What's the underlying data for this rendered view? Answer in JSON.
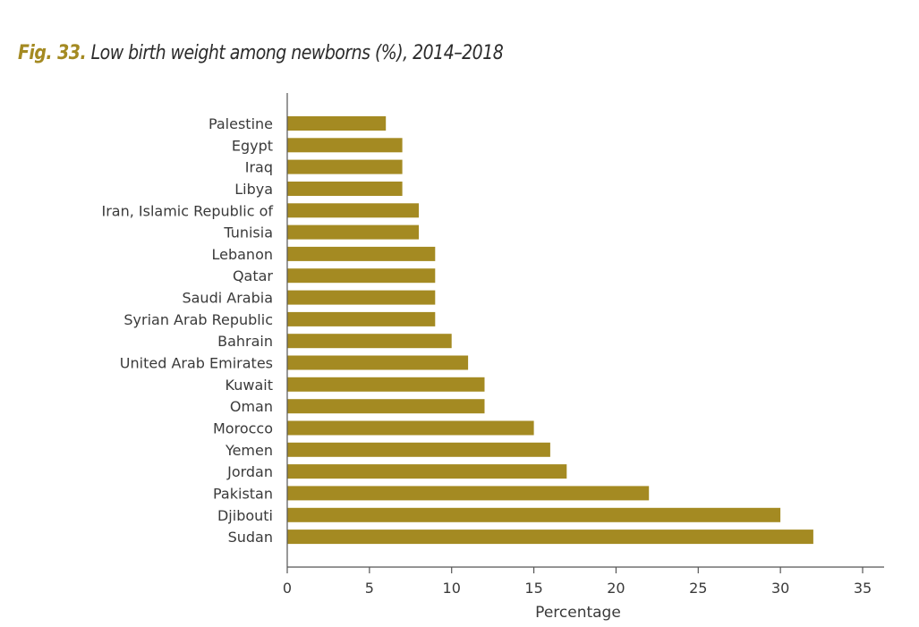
{
  "title": {
    "fig_label": "Fig. 33.",
    "text": "Low birth weight among newborns (%), 2014–2018"
  },
  "colors": {
    "bar": "#a48a22",
    "fig_label": "#a48a22",
    "axis": "#555555"
  },
  "chart_data": {
    "type": "bar",
    "orientation": "horizontal",
    "title": "Fig. 33. Low birth weight among newborns (%), 2014–2018",
    "xlabel": "Percentage",
    "ylabel": "",
    "xlim": [
      0,
      35
    ],
    "xticks": [
      0,
      5,
      10,
      15,
      20,
      25,
      30,
      35
    ],
    "grid": false,
    "categories": [
      "Palestine",
      "Egypt",
      "Iraq",
      "Libya",
      "Iran, Islamic Republic of",
      "Tunisia",
      "Lebanon",
      "Qatar",
      "Saudi Arabia",
      "Syrian Arab Republic",
      "Bahrain",
      "United Arab Emirates",
      "Kuwait",
      "Oman",
      "Morocco",
      "Yemen",
      "Jordan",
      "Pakistan",
      "Djibouti",
      "Sudan"
    ],
    "values": [
      6,
      7,
      7,
      7,
      8,
      8,
      9,
      9,
      9,
      9,
      10,
      11,
      12,
      12,
      15,
      16,
      17,
      22,
      30,
      32
    ]
  }
}
